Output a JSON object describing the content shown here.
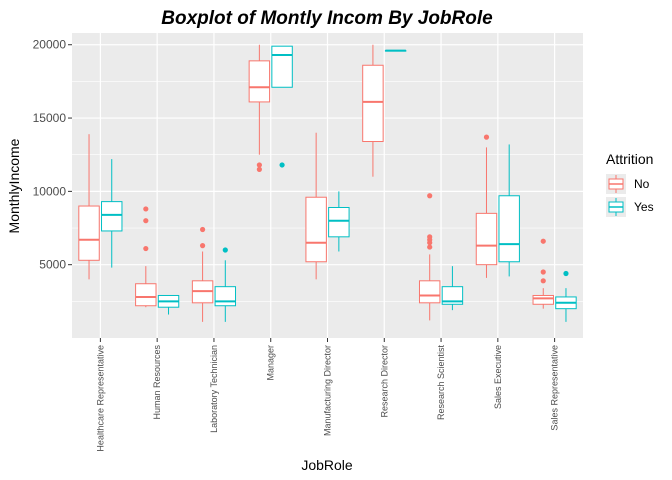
{
  "chart_data": {
    "type": "boxplot",
    "title": "Boxplot of Montly Incom By  JobRole",
    "xlabel": "JobRole",
    "ylabel": "MonthlyIncome",
    "ylim": [
      0,
      20800
    ],
    "yticks": [
      5000,
      10000,
      15000,
      20000
    ],
    "ytick_labels": [
      "5000",
      "10000",
      "15000",
      "20000"
    ],
    "grid": true,
    "legend_title": "Attrition",
    "legend_position": "right",
    "categories": [
      "Healthcare Representative",
      "Human Resources",
      "Laboratory Technician",
      "Manager",
      "Manufacturing Director",
      "Research Director",
      "Research Scientist",
      "Sales Executive",
      "Sales Representative"
    ],
    "series": [
      {
        "name": "No",
        "color": "#F8766D",
        "boxes": [
          {
            "min": 4000,
            "q1": 5300,
            "median": 6700,
            "q3": 9000,
            "max": 13900,
            "outliers": []
          },
          {
            "min": 2100,
            "q1": 2200,
            "median": 2800,
            "q3": 3700,
            "max": 4900,
            "outliers": [
              6100,
              8000,
              8800
            ]
          },
          {
            "min": 1100,
            "q1": 2400,
            "median": 3200,
            "q3": 3900,
            "max": 5900,
            "outliers": [
              6300,
              7400
            ]
          },
          {
            "min": 12500,
            "q1": 16100,
            "median": 17100,
            "q3": 18900,
            "max": 20000,
            "outliers": [
              11500,
              11800
            ]
          },
          {
            "min": 4000,
            "q1": 5200,
            "median": 6500,
            "q3": 9600,
            "max": 14000,
            "outliers": []
          },
          {
            "min": 11000,
            "q1": 13400,
            "median": 16100,
            "q3": 18600,
            "max": 20000,
            "outliers": []
          },
          {
            "min": 1200,
            "q1": 2400,
            "median": 2900,
            "q3": 3900,
            "max": 5700,
            "outliers": [
              6200,
              6500,
              6700,
              6900,
              9700
            ]
          },
          {
            "min": 4100,
            "q1": 5000,
            "median": 6300,
            "q3": 8500,
            "max": 13000,
            "outliers": [
              13700
            ]
          },
          {
            "min": 2000,
            "q1": 2300,
            "median": 2700,
            "q3": 2900,
            "max": 3400,
            "outliers": [
              3900,
              4500,
              6600
            ]
          }
        ]
      },
      {
        "name": "Yes",
        "color": "#00BFC4",
        "boxes": [
          {
            "min": 4800,
            "q1": 7300,
            "median": 8400,
            "q3": 9300,
            "max": 12200,
            "outliers": []
          },
          {
            "min": 1600,
            "q1": 2100,
            "median": 2500,
            "q3": 2900,
            "max": 2900,
            "outliers": []
          },
          {
            "min": 1100,
            "q1": 2200,
            "median": 2500,
            "q3": 3500,
            "max": 5300,
            "outliers": [
              6000
            ]
          },
          {
            "min": 17100,
            "q1": 17100,
            "median": 19300,
            "q3": 19900,
            "max": 19900,
            "outliers": [
              11800
            ]
          },
          {
            "min": 5900,
            "q1": 6900,
            "median": 8000,
            "q3": 8900,
            "max": 10000,
            "outliers": []
          },
          {
            "min": 19600,
            "q1": 19600,
            "median": 19600,
            "q3": 19600,
            "max": 19600,
            "outliers": []
          },
          {
            "min": 1900,
            "q1": 2300,
            "median": 2500,
            "q3": 3500,
            "max": 4900,
            "outliers": []
          },
          {
            "min": 4200,
            "q1": 5200,
            "median": 6400,
            "q3": 9700,
            "max": 13200,
            "outliers": []
          },
          {
            "min": 1100,
            "q1": 2000,
            "median": 2400,
            "q3": 2800,
            "max": 3400,
            "outliers": [
              4400
            ]
          }
        ]
      }
    ]
  },
  "colors": {
    "panel": "#EBEBEB",
    "grid": "#FFFFFF"
  }
}
